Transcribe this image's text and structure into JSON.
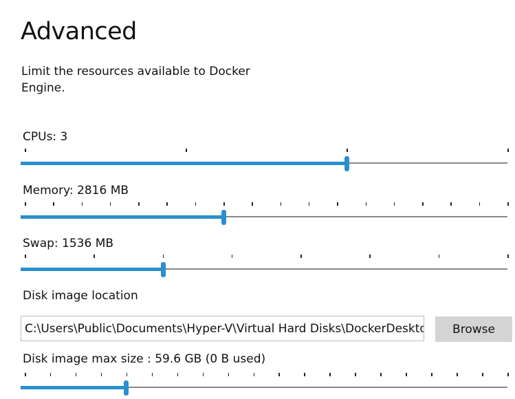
{
  "title": "Advanced",
  "description": "Limit the resources available to Docker Engine.",
  "accent_color": "#2b8ecf",
  "sliders": [
    {
      "id": "cpus",
      "label": "CPUs: 3",
      "ticks": 4,
      "fraction": 0.667
    },
    {
      "id": "memory",
      "label": "Memory: 2816 MB",
      "ticks": 18,
      "fraction": 0.412
    },
    {
      "id": "swap",
      "label": "Swap: 1536 MB",
      "ticks": 8,
      "fraction": 0.286
    },
    {
      "id": "disk",
      "label": "Disk image max size : 59.6 GB (0 B  used)",
      "ticks": 20,
      "fraction": 0.21
    }
  ],
  "disk_location": {
    "label": "Disk image location",
    "value": "C:\\Users\\Public\\Documents\\Hyper-V\\Virtual Hard Disks\\DockerDesktop.vhdx",
    "browse_label": "Browse"
  }
}
